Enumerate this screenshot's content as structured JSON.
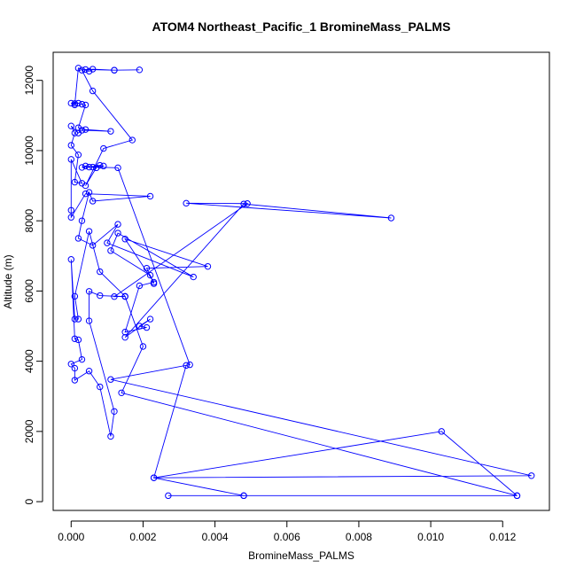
{
  "chart_data": {
    "type": "line",
    "title": "ATOM4 Northeast_Pacific_1 BromineMass_PALMS",
    "xlabel": "BromineMass_PALMS",
    "ylabel": "Altitude (m)",
    "xlim": [
      -0.0005,
      0.0133
    ],
    "ylim": [
      -250,
      12800
    ],
    "xticks": [
      0.0,
      0.002,
      0.004,
      0.006,
      0.008,
      0.01,
      0.012
    ],
    "xtick_labels": [
      "0.000",
      "0.002",
      "0.004",
      "0.006",
      "0.008",
      "0.010",
      "0.012"
    ],
    "yticks": [
      0,
      2000,
      4000,
      6000,
      8000,
      10000,
      12000
    ],
    "ytick_labels": [
      "0",
      "2000",
      "4000",
      "6000",
      "8000",
      "10000",
      "12000"
    ],
    "grid": false,
    "legend": "none",
    "series": [
      {
        "color": "#0000ff",
        "marker": "open-circle",
        "points": [
          [
            0.0048,
            170
          ],
          [
            0.0124,
            170
          ],
          [
            0.0027,
            170
          ],
          [
            0.0048,
            170
          ],
          [
            0.0023,
            680
          ],
          [
            0.0128,
            740
          ],
          [
            0.0011,
            3480
          ],
          [
            0.0033,
            3900
          ],
          [
            0.0013,
            9510
          ],
          [
            0.0005,
            9530
          ],
          [
            0.0008,
            9580
          ],
          [
            0.0009,
            9560
          ],
          [
            0.0003,
            9520
          ],
          [
            0.0004,
            9560
          ],
          [
            0.0006,
            9530
          ],
          [
            0.0007,
            9510
          ],
          [
            0.0004,
            9000
          ],
          [
            0.0009,
            10060
          ],
          [
            0.0017,
            10300
          ],
          [
            0.0006,
            11700
          ],
          [
            0.0003,
            12290
          ],
          [
            0.0004,
            12310
          ],
          [
            0.0012,
            12290
          ],
          [
            0.0019,
            12300
          ],
          [
            0.0012,
            12290
          ],
          [
            0.0006,
            12320
          ],
          [
            0.0005,
            12260
          ],
          [
            0.0002,
            12350
          ],
          [
            0.0001,
            11300
          ],
          [
            0.0,
            11350
          ],
          [
            0.0001,
            11340
          ],
          [
            0.0002,
            11350
          ],
          [
            0.0003,
            11320
          ],
          [
            0.0004,
            11300
          ],
          [
            0.0002,
            10650
          ],
          [
            0.0004,
            10600
          ],
          [
            0.0011,
            10550
          ],
          [
            0.0003,
            10580
          ],
          [
            0.0002,
            10500
          ],
          [
            0.0,
            10700
          ],
          [
            0.0001,
            10500
          ],
          [
            0.0,
            10150
          ],
          [
            0.0002,
            9880
          ],
          [
            0.0001,
            9100
          ],
          [
            0.0003,
            9070
          ],
          [
            0.0,
            9750
          ],
          [
            0.0,
            8300
          ],
          [
            0.0,
            8100
          ],
          [
            0.0004,
            8770
          ],
          [
            0.0022,
            8700
          ],
          [
            0.0006,
            8560
          ],
          [
            0.0005,
            8810
          ],
          [
            0.0003,
            8000
          ],
          [
            0.0002,
            7500
          ],
          [
            0.0006,
            7300
          ],
          [
            0.0013,
            7900
          ],
          [
            0.001,
            7370
          ],
          [
            0.0034,
            6400
          ],
          [
            0.0013,
            7650
          ],
          [
            0.0011,
            7150
          ],
          [
            0.0022,
            6450
          ],
          [
            0.0023,
            6210
          ],
          [
            0.0021,
            6650
          ],
          [
            0.0038,
            6700
          ],
          [
            0.0015,
            7480
          ],
          [
            0.0023,
            6250
          ],
          [
            0.0019,
            6150
          ],
          [
            0.0015,
            4830
          ],
          [
            0.0021,
            4960
          ],
          [
            0.0019,
            5000
          ],
          [
            0.0022,
            5200
          ],
          [
            0.0015,
            4680
          ],
          [
            0.0048,
            8480
          ],
          [
            0.0089,
            8080
          ],
          [
            0.0032,
            8500
          ],
          [
            0.0049,
            8490
          ],
          [
            0.0012,
            5840
          ],
          [
            0.0015,
            5850
          ],
          [
            0.0008,
            6550
          ],
          [
            0.0005,
            7700
          ],
          [
            0.0001,
            5850
          ],
          [
            0.0002,
            5200
          ],
          [
            0.0001,
            5200
          ],
          [
            0.0,
            6900
          ],
          [
            0.0001,
            4640
          ],
          [
            0.0002,
            4610
          ],
          [
            0.0003,
            4050
          ],
          [
            0.0,
            3920
          ],
          [
            0.0001,
            3800
          ],
          [
            0.0001,
            3460
          ],
          [
            0.0005,
            3720
          ],
          [
            0.0008,
            3270
          ],
          [
            0.0011,
            1860
          ],
          [
            0.0012,
            2570
          ],
          [
            0.0005,
            5150
          ],
          [
            0.0005,
            5990
          ],
          [
            0.0008,
            5870
          ],
          [
            0.0015,
            5840
          ],
          [
            0.002,
            4420
          ],
          [
            0.0014,
            3100
          ],
          [
            0.0124,
            170
          ],
          [
            0.0103,
            2000
          ],
          [
            0.0023,
            680
          ],
          [
            0.0032,
            3880
          ]
        ]
      }
    ]
  }
}
